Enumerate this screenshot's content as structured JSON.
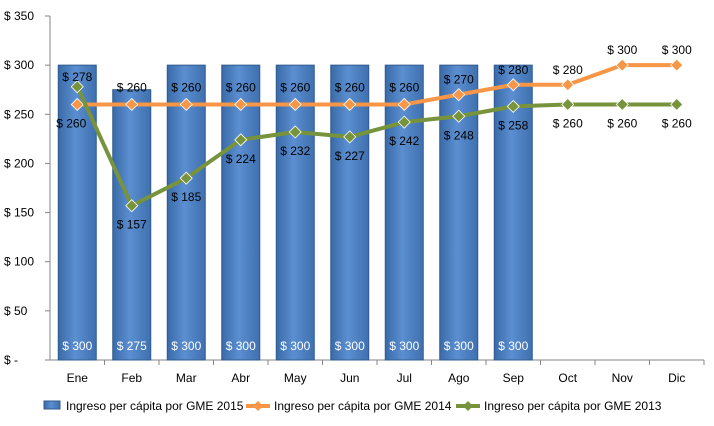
{
  "chart_data": {
    "type": "bar+line",
    "categories": [
      "Ene",
      "Feb",
      "Mar",
      "Abr",
      "May",
      "Jun",
      "Jul",
      "Ago",
      "Sep",
      "Oct",
      "Nov",
      "Dic"
    ],
    "ylim": [
      0,
      350
    ],
    "yticks": [
      0,
      50,
      100,
      150,
      200,
      250,
      300,
      350
    ],
    "ytick_labels": [
      "$ -",
      "$ 50",
      "$ 100",
      "$ 150",
      "$ 200",
      "$ 250",
      "$ 300",
      "$ 350"
    ],
    "series": [
      {
        "name": "Ingreso per cápita por GME 2015",
        "kind": "bar",
        "color": "#4F81BD",
        "values": [
          300,
          275,
          300,
          300,
          300,
          300,
          300,
          300,
          300,
          null,
          null,
          null
        ],
        "labels": [
          "$ 300",
          "$ 275",
          "$ 300",
          "$ 300",
          "$ 300",
          "$ 300",
          "$ 300",
          "$ 300",
          "$ 300",
          null,
          null,
          null
        ]
      },
      {
        "name": "Ingreso per cápita por GME 2014",
        "kind": "line",
        "marker": "diamond",
        "color": "#F79646",
        "values": [
          260,
          260,
          260,
          260,
          260,
          260,
          260,
          270,
          280,
          280,
          300,
          300
        ],
        "labels": [
          "$ 260",
          "$ 260",
          "$ 260",
          "$ 260",
          "$ 260",
          "$ 260",
          "$ 260",
          "$ 270",
          "$ 280",
          "$ 280",
          "$ 300",
          "$ 300"
        ]
      },
      {
        "name": "Ingreso per cápita por GME 2013",
        "kind": "line",
        "marker": "diamond",
        "color": "#77933C",
        "values": [
          278,
          157,
          185,
          224,
          232,
          227,
          242,
          248,
          258,
          260,
          260,
          260
        ],
        "labels": [
          "$ 278",
          "$ 157",
          "$ 185",
          "$ 224",
          "$ 232",
          "$ 227",
          "$ 242",
          "$ 248",
          "$ 258",
          "$ 260",
          "$ 260",
          "$ 260"
        ]
      }
    ],
    "grid": false,
    "legend": "bottom"
  }
}
